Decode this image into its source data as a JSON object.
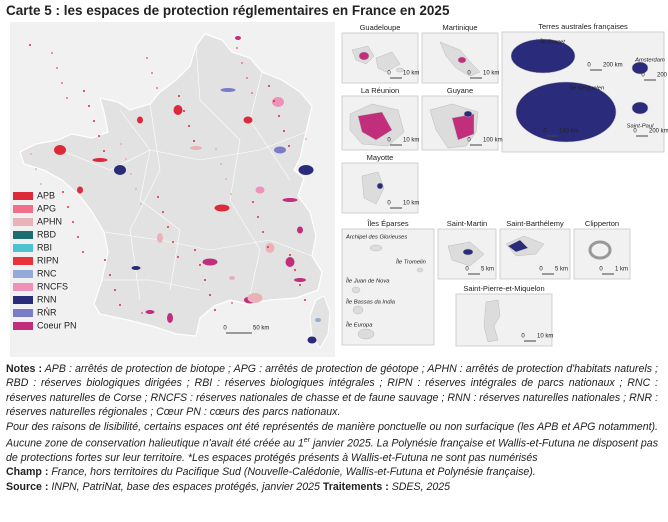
{
  "title": "Carte 5 : les espaces de protection réglementaires en France en 2025",
  "legend": {
    "items": [
      {
        "label": "APB",
        "color": "#dd2a3a"
      },
      {
        "label": "APG",
        "color": "#f0708a"
      },
      {
        "label": "APHN",
        "color": "#e8b2b8"
      },
      {
        "label": "RBD",
        "color": "#1a6e70"
      },
      {
        "label": "RBI",
        "color": "#4fc2cf"
      },
      {
        "label": "RIPN",
        "color": "#e8323c"
      },
      {
        "label": "RNC",
        "color": "#93a9d8"
      },
      {
        "label": "RNCFS",
        "color": "#ee92b9"
      },
      {
        "label": "RNN",
        "color": "#2b2b7c"
      },
      {
        "label": "RNR",
        "color": "#7b7cc8"
      },
      {
        "label": "Coeur PN",
        "color": "#c02e7c"
      }
    ]
  },
  "mainland_scale": {
    "zero": "0",
    "unit": "50 km"
  },
  "insets": [
    {
      "name": "Guadeloupe",
      "scales": [
        {
          "zero": "0",
          "unit": "10 km"
        }
      ]
    },
    {
      "name": "Martinique",
      "scales": [
        {
          "zero": "0",
          "unit": "10 km"
        }
      ]
    },
    {
      "name": "Terres australes françaises",
      "places": [
        "Île Crozet",
        "Amsterdam",
        "Île Kerguelen",
        "Saint-Paul"
      ],
      "scales": [
        {
          "zero": "0",
          "unit": "200 km"
        },
        {
          "zero": "0",
          "unit": "200 km"
        },
        {
          "zero": "0",
          "unit": "160 km"
        },
        {
          "zero": "0",
          "unit": "200 km"
        }
      ]
    },
    {
      "name": "La Réunion",
      "scales": [
        {
          "zero": "0",
          "unit": "10 km"
        }
      ]
    },
    {
      "name": "Guyane",
      "scales": [
        {
          "zero": "0",
          "unit": "100 km"
        }
      ]
    },
    {
      "name": "Mayotte",
      "scales": [
        {
          "zero": "0",
          "unit": "10 km"
        }
      ]
    },
    {
      "name": "Îles Éparses",
      "places": [
        "Archipel des Glorieuses",
        "Île Tromelin",
        "Île Juan de Nova",
        "Île Bassas da India",
        "Île Europa"
      ],
      "scales": []
    },
    {
      "name": "Saint-Martin",
      "scales": [
        {
          "zero": "0",
          "unit": "5 km"
        }
      ]
    },
    {
      "name": "Saint-Barthélemy",
      "scales": [
        {
          "zero": "0",
          "unit": "5 km"
        }
      ]
    },
    {
      "name": "Clipperton",
      "scales": [
        {
          "zero": "0",
          "unit": "1 km"
        }
      ]
    },
    {
      "name": "Saint-Pierre-et-Miquelon",
      "scales": [
        {
          "zero": "0",
          "unit": "10 km"
        }
      ]
    }
  ],
  "notes": {
    "label": "Notes :",
    "abbreviations": "APB : arrêtés de protection de biotope ; APG : arrêtés de protection de géotope ; APHN : arrêtés de protection d'habitats naturels ; RBD : réserves biologiques dirigées ; RBI : réserves biologiques intégrales ; RIPN : réserves intégrales de parcs nationaux ; RNC : réserves naturelles de Corse ; RNCFS : réserves nationales de chasse et de faune sauvage ; RNN : réserves naturelles nationales ; RNR : réserves naturelles régionales ; Cœur PN : cœurs des parcs nationaux.",
    "text_before": "Pour des raisons de lisibilité, certains espaces ont été représentés de manière ponctuelle ou non surfacique (les APB et APG notamment). Aucune zone de conservation halieutique n'avait été créée au 1",
    "superscript": "er",
    "text_after": " janvier 2025. La Polynésie française et Wallis-et-Futuna ne disposent pas de protections fortes sur leur territoire. *Les espaces protégés présents à Wallis-et-Futuna ne sont pas numérisés"
  },
  "champ": {
    "label": "Champ :",
    "text": "France, hors territoires du Pacifique Sud (Nouvelle-Calédonie, Wallis-et-Futuna et Polynésie française)."
  },
  "source": {
    "label": "Source :",
    "text": "INPN, PatriNat, base des espaces protégés, janvier 2025",
    "label_2": "Traitements :",
    "text_2": "SDES, 2025"
  }
}
